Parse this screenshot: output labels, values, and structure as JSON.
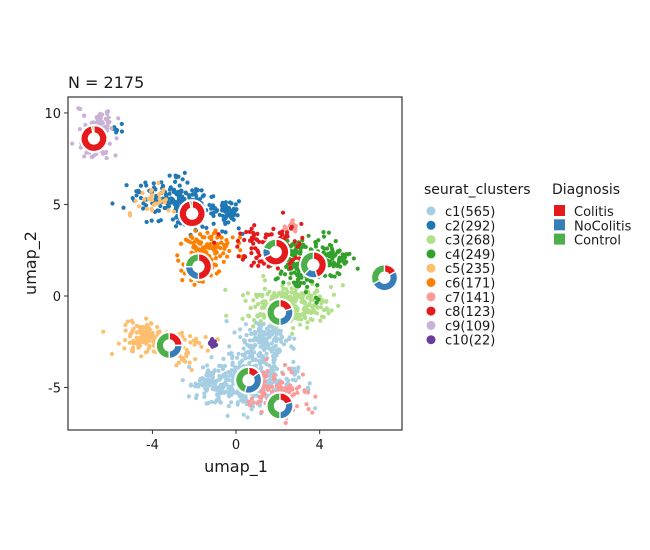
{
  "chart_data": {
    "type": "scatter",
    "title": "N = 2175",
    "xlabel": "umap_1",
    "ylabel": "umap_2",
    "xlim": [
      -8.04,
      7.94
    ],
    "ylim": [
      -7.32,
      10.87
    ],
    "xticks": [
      -4,
      0,
      4
    ],
    "yticks": [
      -5,
      0,
      5,
      10
    ],
    "grid": false,
    "legend_placement": "right",
    "cluster_legend_title": "seurat_clusters",
    "diagnosis_legend_title": "Diagnosis",
    "diagnosis": [
      {
        "name": "Colitis",
        "color": "#E41A1C"
      },
      {
        "name": "NoColitis",
        "color": "#377EB8"
      },
      {
        "name": "Control",
        "color": "#4DAF4A"
      }
    ],
    "clusters": [
      {
        "id": "c1",
        "label": "c1(565)",
        "count": 565,
        "color": "#A6CEE3",
        "blobs": [
          [
            0.6,
            -4.6,
            1.1,
            0.8,
            0.6
          ],
          [
            1.4,
            -2.4,
            0.6,
            0.6,
            0.25
          ],
          [
            -0.9,
            -4.9,
            0.6,
            0.5,
            0.15
          ]
        ],
        "pie": {
          "x": 0.6,
          "y": -4.6,
          "fractions": [
            0.15,
            0.4,
            0.45
          ]
        }
      },
      {
        "id": "c2",
        "label": "c2(292)",
        "count": 292,
        "color": "#1F78B4",
        "blobs": [
          [
            -3.2,
            5.3,
            0.9,
            0.55,
            0.5
          ],
          [
            -2.0,
            4.4,
            0.5,
            0.5,
            0.25
          ],
          [
            -0.4,
            4.6,
            0.35,
            0.4,
            0.22
          ],
          [
            -5.8,
            9.1,
            0.15,
            0.15,
            0.03
          ]
        ],
        "pie": {
          "x": -2.1,
          "y": 4.5,
          "fractions": [
            0.97,
            0.0,
            0.03
          ]
        }
      },
      {
        "id": "c3",
        "label": "c3(268)",
        "count": 268,
        "color": "#B2DF8A",
        "blobs": [
          [
            2.4,
            -0.5,
            1.0,
            0.6,
            1.0
          ]
        ],
        "pie": {
          "x": 2.1,
          "y": -0.9,
          "fractions": [
            0.2,
            0.3,
            0.5
          ]
        }
      },
      {
        "id": "c4",
        "label": "c4(249)",
        "count": 249,
        "color": "#33A02C",
        "blobs": [
          [
            3.4,
            1.9,
            0.75,
            0.7,
            0.8
          ],
          [
            4.8,
            2.0,
            0.35,
            0.35,
            0.2
          ]
        ],
        "pie": {
          "x": 3.7,
          "y": 1.7,
          "fractions": [
            0.45,
            0.17,
            0.38
          ]
        }
      },
      {
        "id": "c5",
        "label": "c5(235)",
        "count": 235,
        "color": "#FDBF6F",
        "line": [
          [
            -5.0,
            -1.4
          ],
          [
            -2.2,
            -3.6
          ]
        ],
        "blobs": [
          [
            -3.8,
            -2.5,
            1.0,
            0.4,
            0.8
          ],
          [
            -3.9,
            5.1,
            0.5,
            0.4,
            0.2
          ]
        ],
        "pie": {
          "x": -3.2,
          "y": -2.7,
          "fractions": [
            0.25,
            0.25,
            0.5
          ]
        }
      },
      {
        "id": "c6",
        "label": "c6(171)",
        "count": 171,
        "color": "#FF7F00",
        "blobs": [
          [
            -1.3,
            2.6,
            0.6,
            0.5,
            0.6
          ],
          [
            -1.9,
            1.5,
            0.45,
            0.45,
            0.4
          ]
        ],
        "pie": {
          "x": -1.8,
          "y": 1.6,
          "fractions": [
            0.5,
            0.25,
            0.25
          ]
        }
      },
      {
        "id": "c7",
        "label": "c7(141)",
        "count": 141,
        "color": "#FB9A99",
        "blobs": [
          [
            2.0,
            -5.4,
            0.7,
            0.6,
            0.85
          ],
          [
            2.6,
            3.8,
            0.2,
            0.2,
            0.15
          ]
        ],
        "pie": {
          "x": 2.1,
          "y": -6.0,
          "fractions": [
            0.2,
            0.3,
            0.5
          ]
        }
      },
      {
        "id": "c8",
        "label": "c8(123)",
        "count": 123,
        "color": "#E31A1C",
        "blobs": [
          [
            1.6,
            2.7,
            0.8,
            0.6,
            1.0
          ]
        ],
        "pie": {
          "x": 1.9,
          "y": 2.4,
          "fractions": [
            0.68,
            0.12,
            0.2
          ]
        }
      },
      {
        "id": "c9",
        "label": "c9(109)",
        "count": 109,
        "color": "#CAB2D6",
        "blobs": [
          [
            -6.5,
            9.4,
            0.35,
            0.35,
            0.6
          ],
          [
            -6.8,
            8.1,
            0.35,
            0.3,
            0.4
          ]
        ],
        "pie": {
          "x": -6.8,
          "y": 8.6,
          "fractions": [
            0.97,
            0.0,
            0.03
          ]
        }
      },
      {
        "id": "c10",
        "label": "c10(22)",
        "count": 22,
        "color": "#6A3D9A",
        "blobs": [
          [
            -1.1,
            -2.6,
            0.1,
            0.1,
            1.0
          ]
        ],
        "pie": {
          "x": 7.1,
          "y": 1.0,
          "fractions": [
            0.17,
            0.5,
            0.33
          ]
        }
      }
    ]
  }
}
